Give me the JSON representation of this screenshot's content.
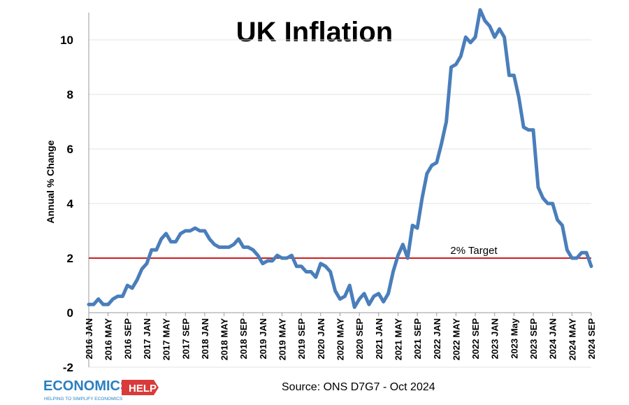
{
  "chart_data": {
    "type": "line",
    "title": "UK Inflation",
    "ylabel": "Annual % Change",
    "xlabel": "",
    "ylim": [
      -2,
      11
    ],
    "yticks": [
      -2,
      0,
      2,
      4,
      6,
      8,
      10
    ],
    "x_tick_labels": [
      "2016 JAN",
      "2016 MAY",
      "2016 SEP",
      "2017 JAN",
      "2017 MAY",
      "2017 SEP",
      "2018 JAN",
      "2018 MAY",
      "2018 SEP",
      "2019 JAN",
      "2019 MAY",
      "2019 SEP",
      "2020 JAN",
      "2020 MAY",
      "2020 SEP",
      "2021 JAN",
      "2021 MAY",
      "2021 SEP",
      "2022 JAN",
      "2022 MAY",
      "2022 SEP",
      "2023 JAN",
      "2023 May",
      "2023 SEP",
      "2024 JAN",
      "2024 MAY",
      "2024 SEP"
    ],
    "series": [
      {
        "color": "#4a7ebb",
        "values": [
          0.3,
          0.3,
          0.5,
          0.3,
          0.3,
          0.5,
          0.6,
          0.6,
          1.0,
          0.9,
          1.2,
          1.6,
          1.8,
          2.3,
          2.3,
          2.7,
          2.9,
          2.6,
          2.6,
          2.9,
          3.0,
          3.0,
          3.1,
          3.0,
          3.0,
          2.7,
          2.5,
          2.4,
          2.4,
          2.4,
          2.5,
          2.7,
          2.4,
          2.4,
          2.3,
          2.1,
          1.8,
          1.9,
          1.9,
          2.1,
          2.0,
          2.0,
          2.1,
          1.7,
          1.7,
          1.5,
          1.5,
          1.3,
          1.8,
          1.7,
          1.5,
          0.8,
          0.5,
          0.6,
          1.0,
          0.2,
          0.5,
          0.7,
          0.3,
          0.6,
          0.7,
          0.4,
          0.7,
          1.5,
          2.1,
          2.5,
          2.0,
          3.2,
          3.1,
          4.2,
          5.1,
          5.4,
          5.5,
          6.2,
          7.0,
          9.0,
          9.1,
          9.4,
          10.1,
          9.9,
          10.1,
          11.1,
          10.7,
          10.5,
          10.1,
          10.4,
          10.1,
          8.7,
          8.7,
          7.9,
          6.8,
          6.7,
          6.7,
          4.6,
          4.2,
          4.0,
          4.0,
          3.4,
          3.2,
          2.3,
          2.0,
          2.0,
          2.2,
          2.2,
          1.7
        ]
      }
    ],
    "target_line": {
      "value": 2,
      "label": "2% Target",
      "color": "#c00000"
    },
    "grid": true,
    "legend": "none"
  },
  "source": "Source: ONS D7G7 - Oct 2024",
  "logo": {
    "main": "ECONOMICS",
    "badge": "HELP",
    "tagline": "HELPING TO SIMPLIFY ECONOMICS",
    "colors": {
      "main": "#2a7fc1",
      "badge": "#d93b3b"
    }
  }
}
